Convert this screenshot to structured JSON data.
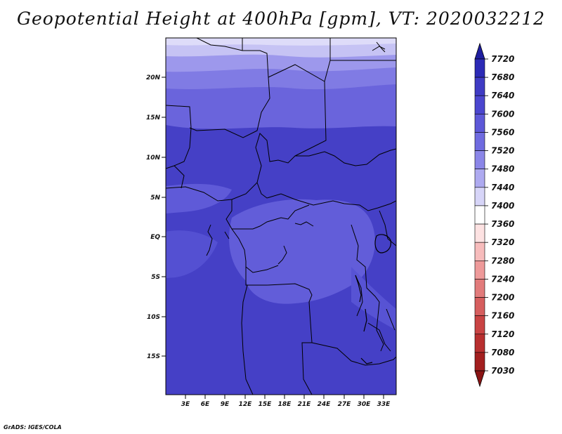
{
  "title": "Geopotential Height at 400hPa [gpm], VT: 2020032212",
  "credit": "GrADS: IGES/COLA",
  "map": {
    "x_ticks": [
      "3E",
      "6E",
      "9E",
      "12E",
      "15E",
      "18E",
      "21E",
      "24E",
      "27E",
      "30E",
      "33E"
    ],
    "y_ticks": [
      "20N",
      "15N",
      "10N",
      "5N",
      "EQ",
      "5S",
      "10S",
      "15S"
    ]
  },
  "colorbar": {
    "levels": [
      "7720",
      "7680",
      "7640",
      "7600",
      "7560",
      "7520",
      "7480",
      "7440",
      "7400",
      "7360",
      "7320",
      "7280",
      "7240",
      "7200",
      "7160",
      "7120",
      "7080",
      "7030"
    ],
    "colors": [
      "#1f1ea0",
      "#2c2ab6",
      "#3f3bc4",
      "#4b46cf",
      "#5d58d8",
      "#6f6be0",
      "#8b86e8",
      "#aeaaf0",
      "#d7d5f8",
      "#ffffff",
      "#fde2e2",
      "#f7bcbc",
      "#ee9a9a",
      "#e27b7b",
      "#d65e5e",
      "#c94343",
      "#b82f2f",
      "#a31f1f",
      "#8a1414"
    ]
  }
}
